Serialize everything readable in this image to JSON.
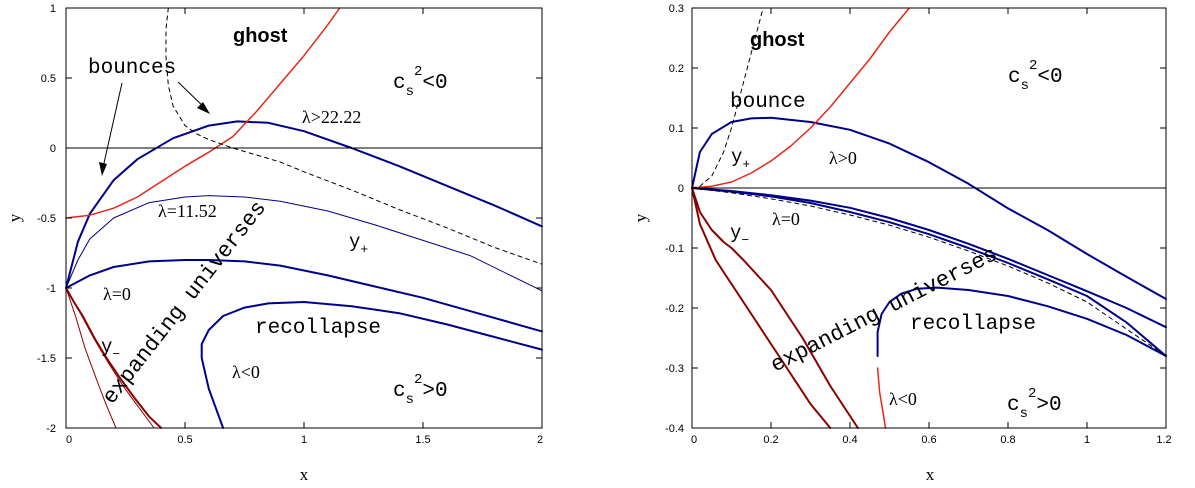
{
  "chart_data": [
    {
      "type": "line",
      "xlabel": "x",
      "ylabel": "y",
      "xlim": [
        0,
        2
      ],
      "ylim": [
        -2,
        1
      ],
      "xticks": [
        "0",
        "0.5",
        "1",
        "1.5",
        "2"
      ],
      "yticks": [
        "-2",
        "-1.5",
        "-1",
        "-0.5",
        "0",
        "0.5",
        "1"
      ],
      "annotations": [
        "ghost",
        "bounces",
        "λ>22.22",
        "λ=11.52",
        "y",
        "+",
        "λ=0",
        "y",
        "−",
        "λ<0",
        "expanding universes",
        "recollapse",
        "c",
        "s",
        "2",
        "<0",
        "c",
        "s",
        "2",
        ">0"
      ],
      "series": [
        {
          "color": "#00008b",
          "width": 2.0,
          "x": [
            0,
            0.05,
            0.1,
            0.2,
            0.3,
            0.45,
            0.6,
            0.72,
            0.85,
            1.0,
            1.2,
            1.4,
            1.6,
            1.8,
            2.0
          ],
          "y": [
            -1.0,
            -0.67,
            -0.47,
            -0.23,
            -0.08,
            0.07,
            0.16,
            0.19,
            0.18,
            0.12,
            0.0,
            -0.13,
            -0.27,
            -0.41,
            -0.56
          ]
        },
        {
          "color": "#00008b",
          "width": 1.0,
          "x": [
            0,
            0.05,
            0.1,
            0.2,
            0.35,
            0.5,
            0.6,
            0.75,
            0.9,
            1.1,
            1.3,
            1.5,
            1.7,
            2.0
          ],
          "y": [
            -1.0,
            -0.8,
            -0.65,
            -0.5,
            -0.39,
            -0.35,
            -0.34,
            -0.35,
            -0.38,
            -0.45,
            -0.55,
            -0.66,
            -0.77,
            -1.02
          ]
        },
        {
          "color": "#00008b",
          "width": 2.0,
          "x": [
            0,
            0.1,
            0.2,
            0.35,
            0.5,
            0.6,
            0.75,
            0.9,
            1.1,
            1.3,
            1.5,
            1.75,
            2.0
          ],
          "y": [
            -1.0,
            -0.91,
            -0.85,
            -0.81,
            -0.8,
            -0.8,
            -0.81,
            -0.84,
            -0.91,
            -0.99,
            -1.07,
            -1.19,
            -1.31
          ]
        },
        {
          "color": "#00008b",
          "width": 2.0,
          "x": [
            0.66,
            0.6,
            0.57,
            0.57,
            0.6,
            0.66,
            0.75,
            0.85,
            1.0,
            1.2,
            1.4,
            1.6,
            1.8,
            2.0
          ],
          "y": [
            -2.0,
            -1.72,
            -1.5,
            -1.4,
            -1.3,
            -1.2,
            -1.14,
            -1.11,
            -1.1,
            -1.13,
            -1.18,
            -1.26,
            -1.35,
            -1.44
          ]
        },
        {
          "color": "#8b0000",
          "width": 2.0,
          "x": [
            0,
            0.03,
            0.07,
            0.12,
            0.17,
            0.23,
            0.29,
            0.35,
            0.4
          ],
          "y": [
            -1.0,
            -1.09,
            -1.2,
            -1.36,
            -1.5,
            -1.65,
            -1.79,
            -1.92,
            -2.0
          ]
        },
        {
          "color": "#8b0000",
          "width": 1.0,
          "x": [
            0,
            0.04,
            0.08,
            0.13,
            0.17,
            0.21
          ],
          "y": [
            -1.0,
            -1.2,
            -1.43,
            -1.66,
            -1.84,
            -2.0
          ]
        },
        {
          "color": "#8b0000",
          "width": 1.0,
          "x": [
            0,
            0.06,
            0.12,
            0.18,
            0.24,
            0.3,
            0.37
          ],
          "y": [
            -1.0,
            -1.18,
            -1.37,
            -1.54,
            -1.7,
            -1.84,
            -2.0
          ]
        },
        {
          "color": "#e8271b",
          "width": 1.5,
          "x": [
            0,
            0.1,
            0.2,
            0.3,
            0.4,
            0.5,
            0.6,
            0.7,
            0.8,
            0.9,
            1.0,
            1.1,
            1.15
          ],
          "y": [
            -0.5,
            -0.48,
            -0.43,
            -0.35,
            -0.24,
            -0.13,
            -0.03,
            0.08,
            0.26,
            0.46,
            0.66,
            0.88,
            1.0
          ]
        },
        {
          "color": "#000000",
          "width": 1.0,
          "dash": "4,4",
          "x": [
            0.43,
            0.42,
            0.42,
            0.43,
            0.45,
            0.5,
            0.55,
            0.6,
            0.7,
            0.8,
            0.9,
            1.0,
            1.2,
            1.4,
            1.6,
            1.8,
            2.0
          ],
          "y": [
            1.0,
            0.85,
            0.65,
            0.45,
            0.3,
            0.16,
            0.1,
            0.06,
            0.0,
            -0.05,
            -0.1,
            -0.17,
            -0.3,
            -0.44,
            -0.57,
            -0.71,
            -0.83
          ]
        }
      ]
    },
    {
      "type": "line",
      "xlabel": "x",
      "ylabel": "y",
      "xlim": [
        0,
        1.2
      ],
      "ylim": [
        -0.4,
        0.3
      ],
      "xticks": [
        "0",
        "0.2",
        "0.4",
        "0.6",
        "0.8",
        "1",
        "1.2"
      ],
      "yticks": [
        "-0.4",
        "-0.3",
        "-0.2",
        "-0.1",
        "0",
        "0.1",
        "0.2",
        "0.3"
      ],
      "annotations": [
        "ghost",
        "bounce",
        "λ>0",
        "y",
        "+",
        "λ=0",
        "y",
        "−",
        "λ<0",
        "expanding universes",
        "recollapse",
        "c",
        "s",
        "2",
        "<0",
        "c",
        "s",
        "2",
        ">0"
      ],
      "series": [
        {
          "color": "#00008b",
          "width": 2.0,
          "x": [
            0,
            0.02,
            0.05,
            0.1,
            0.15,
            0.2,
            0.3,
            0.4,
            0.5,
            0.6,
            0.7,
            0.8,
            0.9,
            1.0,
            1.1,
            1.2
          ],
          "y": [
            0.0,
            0.06,
            0.09,
            0.11,
            0.116,
            0.117,
            0.11,
            0.097,
            0.074,
            0.043,
            0.007,
            -0.034,
            -0.07,
            -0.11,
            -0.148,
            -0.185
          ]
        },
        {
          "color": "#00008b",
          "width": 2.0,
          "x": [
            0,
            0.1,
            0.2,
            0.3,
            0.4,
            0.5,
            0.6,
            0.7,
            0.8,
            0.9,
            1.0,
            1.1,
            1.2
          ],
          "y": [
            0.0,
            -0.005,
            -0.012,
            -0.021,
            -0.033,
            -0.05,
            -0.07,
            -0.093,
            -0.118,
            -0.145,
            -0.172,
            -0.2,
            -0.232
          ]
        },
        {
          "color": "#00008b",
          "width": 2.0,
          "x": [
            0,
            0.1,
            0.2,
            0.3,
            0.4,
            0.5,
            0.6,
            0.7,
            0.8,
            0.9,
            1.0,
            1.1,
            1.2
          ],
          "y": [
            0.0,
            -0.006,
            -0.014,
            -0.025,
            -0.04,
            -0.057,
            -0.077,
            -0.1,
            -0.125,
            -0.152,
            -0.18,
            -0.224,
            -0.28
          ]
        },
        {
          "color": "#00008b",
          "width": 2.0,
          "x": [
            0.47,
            0.47,
            0.48,
            0.5,
            0.53,
            0.57,
            0.62,
            0.7,
            0.8,
            0.9,
            1.0,
            1.1,
            1.2
          ],
          "y": [
            -0.28,
            -0.24,
            -0.21,
            -0.19,
            -0.176,
            -0.168,
            -0.166,
            -0.17,
            -0.18,
            -0.197,
            -0.218,
            -0.245,
            -0.28
          ]
        },
        {
          "color": "#8b0000",
          "width": 2.0,
          "x": [
            0,
            0.02,
            0.06,
            0.1,
            0.15,
            0.2,
            0.25,
            0.3,
            0.35
          ],
          "y": [
            0.0,
            -0.06,
            -0.12,
            -0.16,
            -0.21,
            -0.26,
            -0.31,
            -0.36,
            -0.4
          ]
        },
        {
          "color": "#8b0000",
          "width": 2.0,
          "x": [
            0,
            0.02,
            0.05,
            0.08,
            0.1,
            0.13,
            0.2,
            0.28,
            0.35,
            0.42
          ],
          "y": [
            0.0,
            -0.04,
            -0.07,
            -0.09,
            -0.1,
            -0.12,
            -0.17,
            -0.25,
            -0.33,
            -0.4
          ]
        },
        {
          "color": "#e8271b",
          "width": 1.5,
          "x": [
            0.47,
            0.475,
            0.485,
            0.49
          ],
          "y": [
            -0.3,
            -0.34,
            -0.38,
            -0.4
          ]
        },
        {
          "color": "#e8271b",
          "width": 1.5,
          "x": [
            0,
            0.05,
            0.1,
            0.15,
            0.2,
            0.25,
            0.3,
            0.35,
            0.4,
            0.45,
            0.5,
            0.55
          ],
          "y": [
            0.0,
            0.003,
            0.01,
            0.025,
            0.045,
            0.07,
            0.1,
            0.135,
            0.175,
            0.215,
            0.26,
            0.3
          ]
        },
        {
          "color": "#000000",
          "width": 1.0,
          "dash": "4,4",
          "x": [
            0,
            0.02,
            0.05,
            0.08,
            0.1,
            0.12,
            0.14,
            0.16,
            0.18
          ],
          "y": [
            0.0,
            0.003,
            0.02,
            0.06,
            0.1,
            0.15,
            0.2,
            0.25,
            0.3
          ]
        },
        {
          "color": "#000000",
          "width": 1.0,
          "dash": "4,4",
          "x": [
            0,
            0.1,
            0.2,
            0.3,
            0.4,
            0.5,
            0.6,
            0.7,
            0.8,
            0.9,
            1.0,
            1.1,
            1.2
          ],
          "y": [
            0.0,
            -0.008,
            -0.018,
            -0.03,
            -0.045,
            -0.062,
            -0.082,
            -0.105,
            -0.13,
            -0.158,
            -0.19,
            -0.235,
            -0.28
          ]
        }
      ]
    }
  ]
}
